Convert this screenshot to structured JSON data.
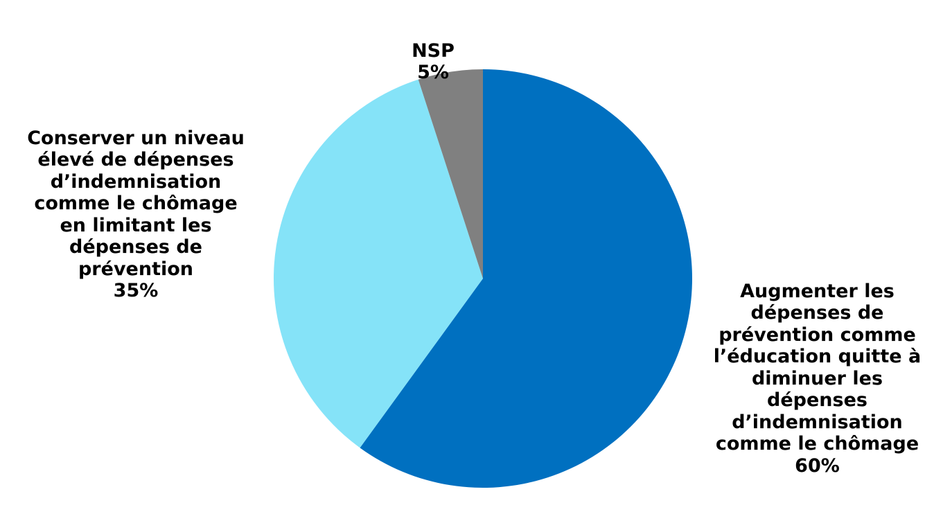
{
  "chart_data": {
    "type": "pie",
    "start_angle": "12 o'clock",
    "direction": "clockwise",
    "slices": [
      {
        "label": "Augmenter les\ndépenses de\nprévention  comme\nl’éducation quitte à\ndiminuer les\ndépenses\nd’indemnisation\ncomme le chômage",
        "value": 60,
        "value_label": "60%",
        "color": "#0070C0"
      },
      {
        "label": "Conserver un niveau\nélevé de dépenses\nd’indemnisation\ncomme le chômage\nen limitant les\ndépenses de\nprévention",
        "value": 35,
        "value_label": "35%",
        "color": "#85E3F8"
      },
      {
        "label": "NSP",
        "value": 5,
        "value_label": "5%",
        "color": "#808080"
      }
    ]
  }
}
